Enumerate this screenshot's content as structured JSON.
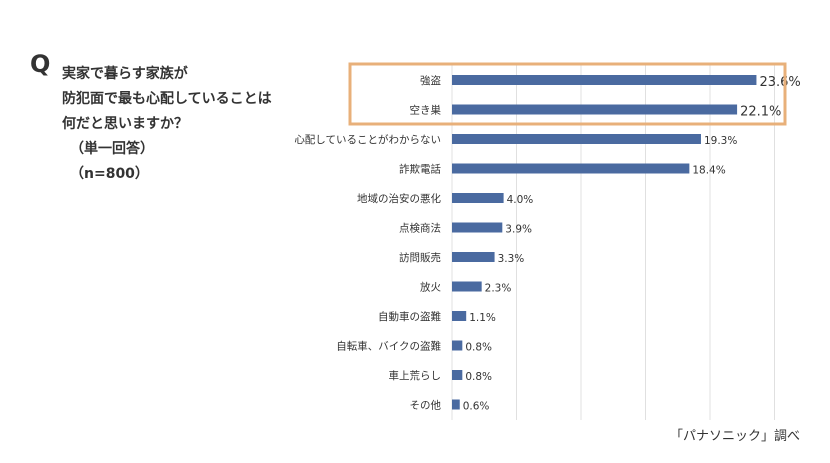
{
  "question": {
    "mark": "Q",
    "lines": [
      "実家で暮らす家族が",
      "防犯面で最も心配していることは",
      "何だと思いますか？"
    ],
    "method": "（単一回答）",
    "sample": "（n=800）"
  },
  "source": "「パナソニック」調べ",
  "colors": {
    "bar": "#4a6aa0",
    "highlight_border": "#e8b07a",
    "grid": "#e0e0e0",
    "text": "#333333"
  },
  "chart_data": {
    "type": "bar",
    "orientation": "horizontal",
    "categories": [
      "強盗",
      "空き巣",
      "心配していることがわからない",
      "詐欺電話",
      "地域の治安の悪化",
      "点検商法",
      "訪問販売",
      "放火",
      "自動車の盗難",
      "自転車、バイクの盗難",
      "車上荒らし",
      "その他"
    ],
    "values": [
      23.6,
      22.1,
      19.3,
      18.4,
      4.0,
      3.9,
      3.3,
      2.3,
      1.1,
      0.8,
      0.8,
      0.6
    ],
    "data_labels": [
      "23.6%",
      "22.1%",
      "19.3%",
      "18.4%",
      "4.0%",
      "3.9%",
      "3.3%",
      "2.3%",
      "1.1%",
      "0.8%",
      "0.8%",
      "0.6%"
    ],
    "highlighted": [
      "強盗",
      "空き巣"
    ],
    "xlim": [
      0,
      25
    ],
    "grid": "vertical",
    "title": "",
    "xlabel": "",
    "ylabel": ""
  }
}
